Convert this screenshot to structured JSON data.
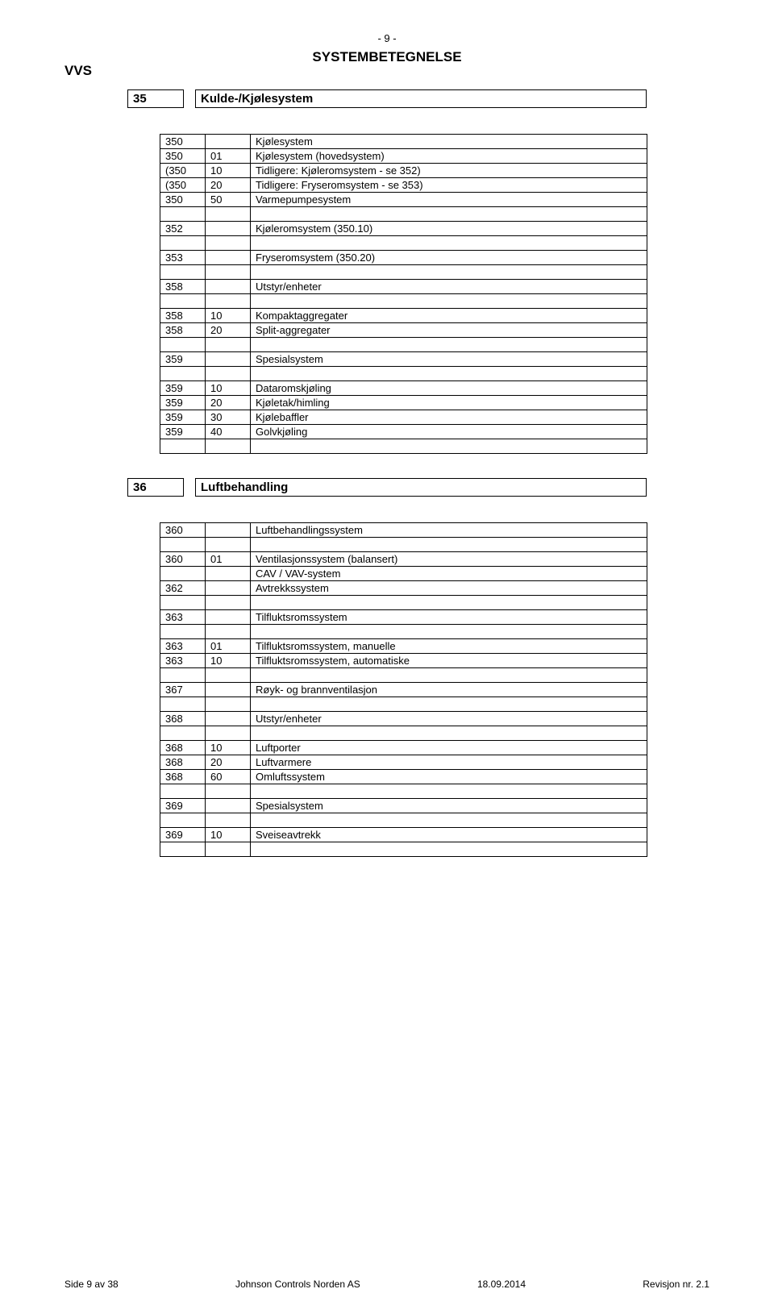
{
  "page_num_label": "- 9 -",
  "doc_title": "SYSTEMBETEGNELSE",
  "top_left_label": "VVS",
  "section35": {
    "num": "35",
    "title": "Kulde-/Kjølesystem",
    "rows": [
      {
        "c1": "350",
        "c2": "",
        "c3": "Kjølesystem"
      },
      {
        "c1": "350",
        "c2": "01",
        "c3": "Kjølesystem (hovedsystem)"
      },
      {
        "c1": "(350",
        "c2": "10",
        "c3": "Tidligere: Kjøleromsystem - se 352)"
      },
      {
        "c1": "(350",
        "c2": "20",
        "c3": "Tidligere: Fryseromsystem - se 353)"
      },
      {
        "c1": "350",
        "c2": "50",
        "c3": "Varmepumpesystem"
      },
      {
        "c1": "",
        "c2": "",
        "c3": ""
      },
      {
        "c1": "352",
        "c2": "",
        "c3": "Kjøleromsystem (350.10)"
      },
      {
        "c1": "",
        "c2": "",
        "c3": ""
      },
      {
        "c1": "353",
        "c2": "",
        "c3": "Fryseromsystem (350.20)"
      },
      {
        "c1": "",
        "c2": "",
        "c3": ""
      },
      {
        "c1": "358",
        "c2": "",
        "c3": "Utstyr/enheter"
      },
      {
        "c1": "",
        "c2": "",
        "c3": ""
      },
      {
        "c1": "358",
        "c2": "10",
        "c3": "Kompaktaggregater"
      },
      {
        "c1": "358",
        "c2": "20",
        "c3": "Split-aggregater"
      },
      {
        "c1": "",
        "c2": "",
        "c3": ""
      },
      {
        "c1": "359",
        "c2": "",
        "c3": "Spesialsystem"
      },
      {
        "c1": "",
        "c2": "",
        "c3": ""
      },
      {
        "c1": "359",
        "c2": "10",
        "c3": "Dataromskjøling"
      },
      {
        "c1": "359",
        "c2": "20",
        "c3": "Kjøletak/himling"
      },
      {
        "c1": "359",
        "c2": "30",
        "c3": "Kjølebaffler"
      },
      {
        "c1": "359",
        "c2": "40",
        "c3": "Golvkjøling"
      },
      {
        "c1": "",
        "c2": "",
        "c3": ""
      }
    ]
  },
  "section36": {
    "num": "36",
    "title": "Luftbehandling",
    "rows": [
      {
        "c1": "360",
        "c2": "",
        "c3": "Luftbehandlingssystem"
      },
      {
        "c1": "",
        "c2": "",
        "c3": ""
      },
      {
        "c1": "360",
        "c2": "01",
        "c3": "Ventilasjonssystem (balansert)"
      },
      {
        "c1": "",
        "c2": "",
        "c3": "CAV / VAV-system"
      },
      {
        "c1": "362",
        "c2": "",
        "c3": "Avtrekkssystem"
      },
      {
        "c1": "",
        "c2": "",
        "c3": ""
      },
      {
        "c1": "363",
        "c2": "",
        "c3": "Tilfluktsromssystem"
      },
      {
        "c1": "",
        "c2": "",
        "c3": ""
      },
      {
        "c1": "363",
        "c2": "01",
        "c3": "Tilfluktsromssystem, manuelle"
      },
      {
        "c1": "363",
        "c2": "10",
        "c3": "Tilfluktsromssystem, automatiske"
      },
      {
        "c1": "",
        "c2": "",
        "c3": ""
      },
      {
        "c1": "367",
        "c2": "",
        "c3": "Røyk- og brannventilasjon"
      },
      {
        "c1": "",
        "c2": "",
        "c3": ""
      },
      {
        "c1": "368",
        "c2": "",
        "c3": "Utstyr/enheter"
      },
      {
        "c1": "",
        "c2": "",
        "c3": ""
      },
      {
        "c1": "368",
        "c2": "10",
        "c3": "Luftporter"
      },
      {
        "c1": "368",
        "c2": "20",
        "c3": "Luftvarmere"
      },
      {
        "c1": "368",
        "c2": "60",
        "c3": "Omluftssystem"
      },
      {
        "c1": "",
        "c2": "",
        "c3": ""
      },
      {
        "c1": "369",
        "c2": "",
        "c3": "Spesialsystem"
      },
      {
        "c1": "",
        "c2": "",
        "c3": ""
      },
      {
        "c1": "369",
        "c2": "10",
        "c3": "Sveiseavtrekk"
      },
      {
        "c1": "",
        "c2": "",
        "c3": ""
      }
    ]
  },
  "footer": {
    "left": "Side 9 av 38",
    "center": "Johnson Controls Norden AS",
    "date": "18.09.2014",
    "right": "Revisjon nr. 2.1"
  }
}
